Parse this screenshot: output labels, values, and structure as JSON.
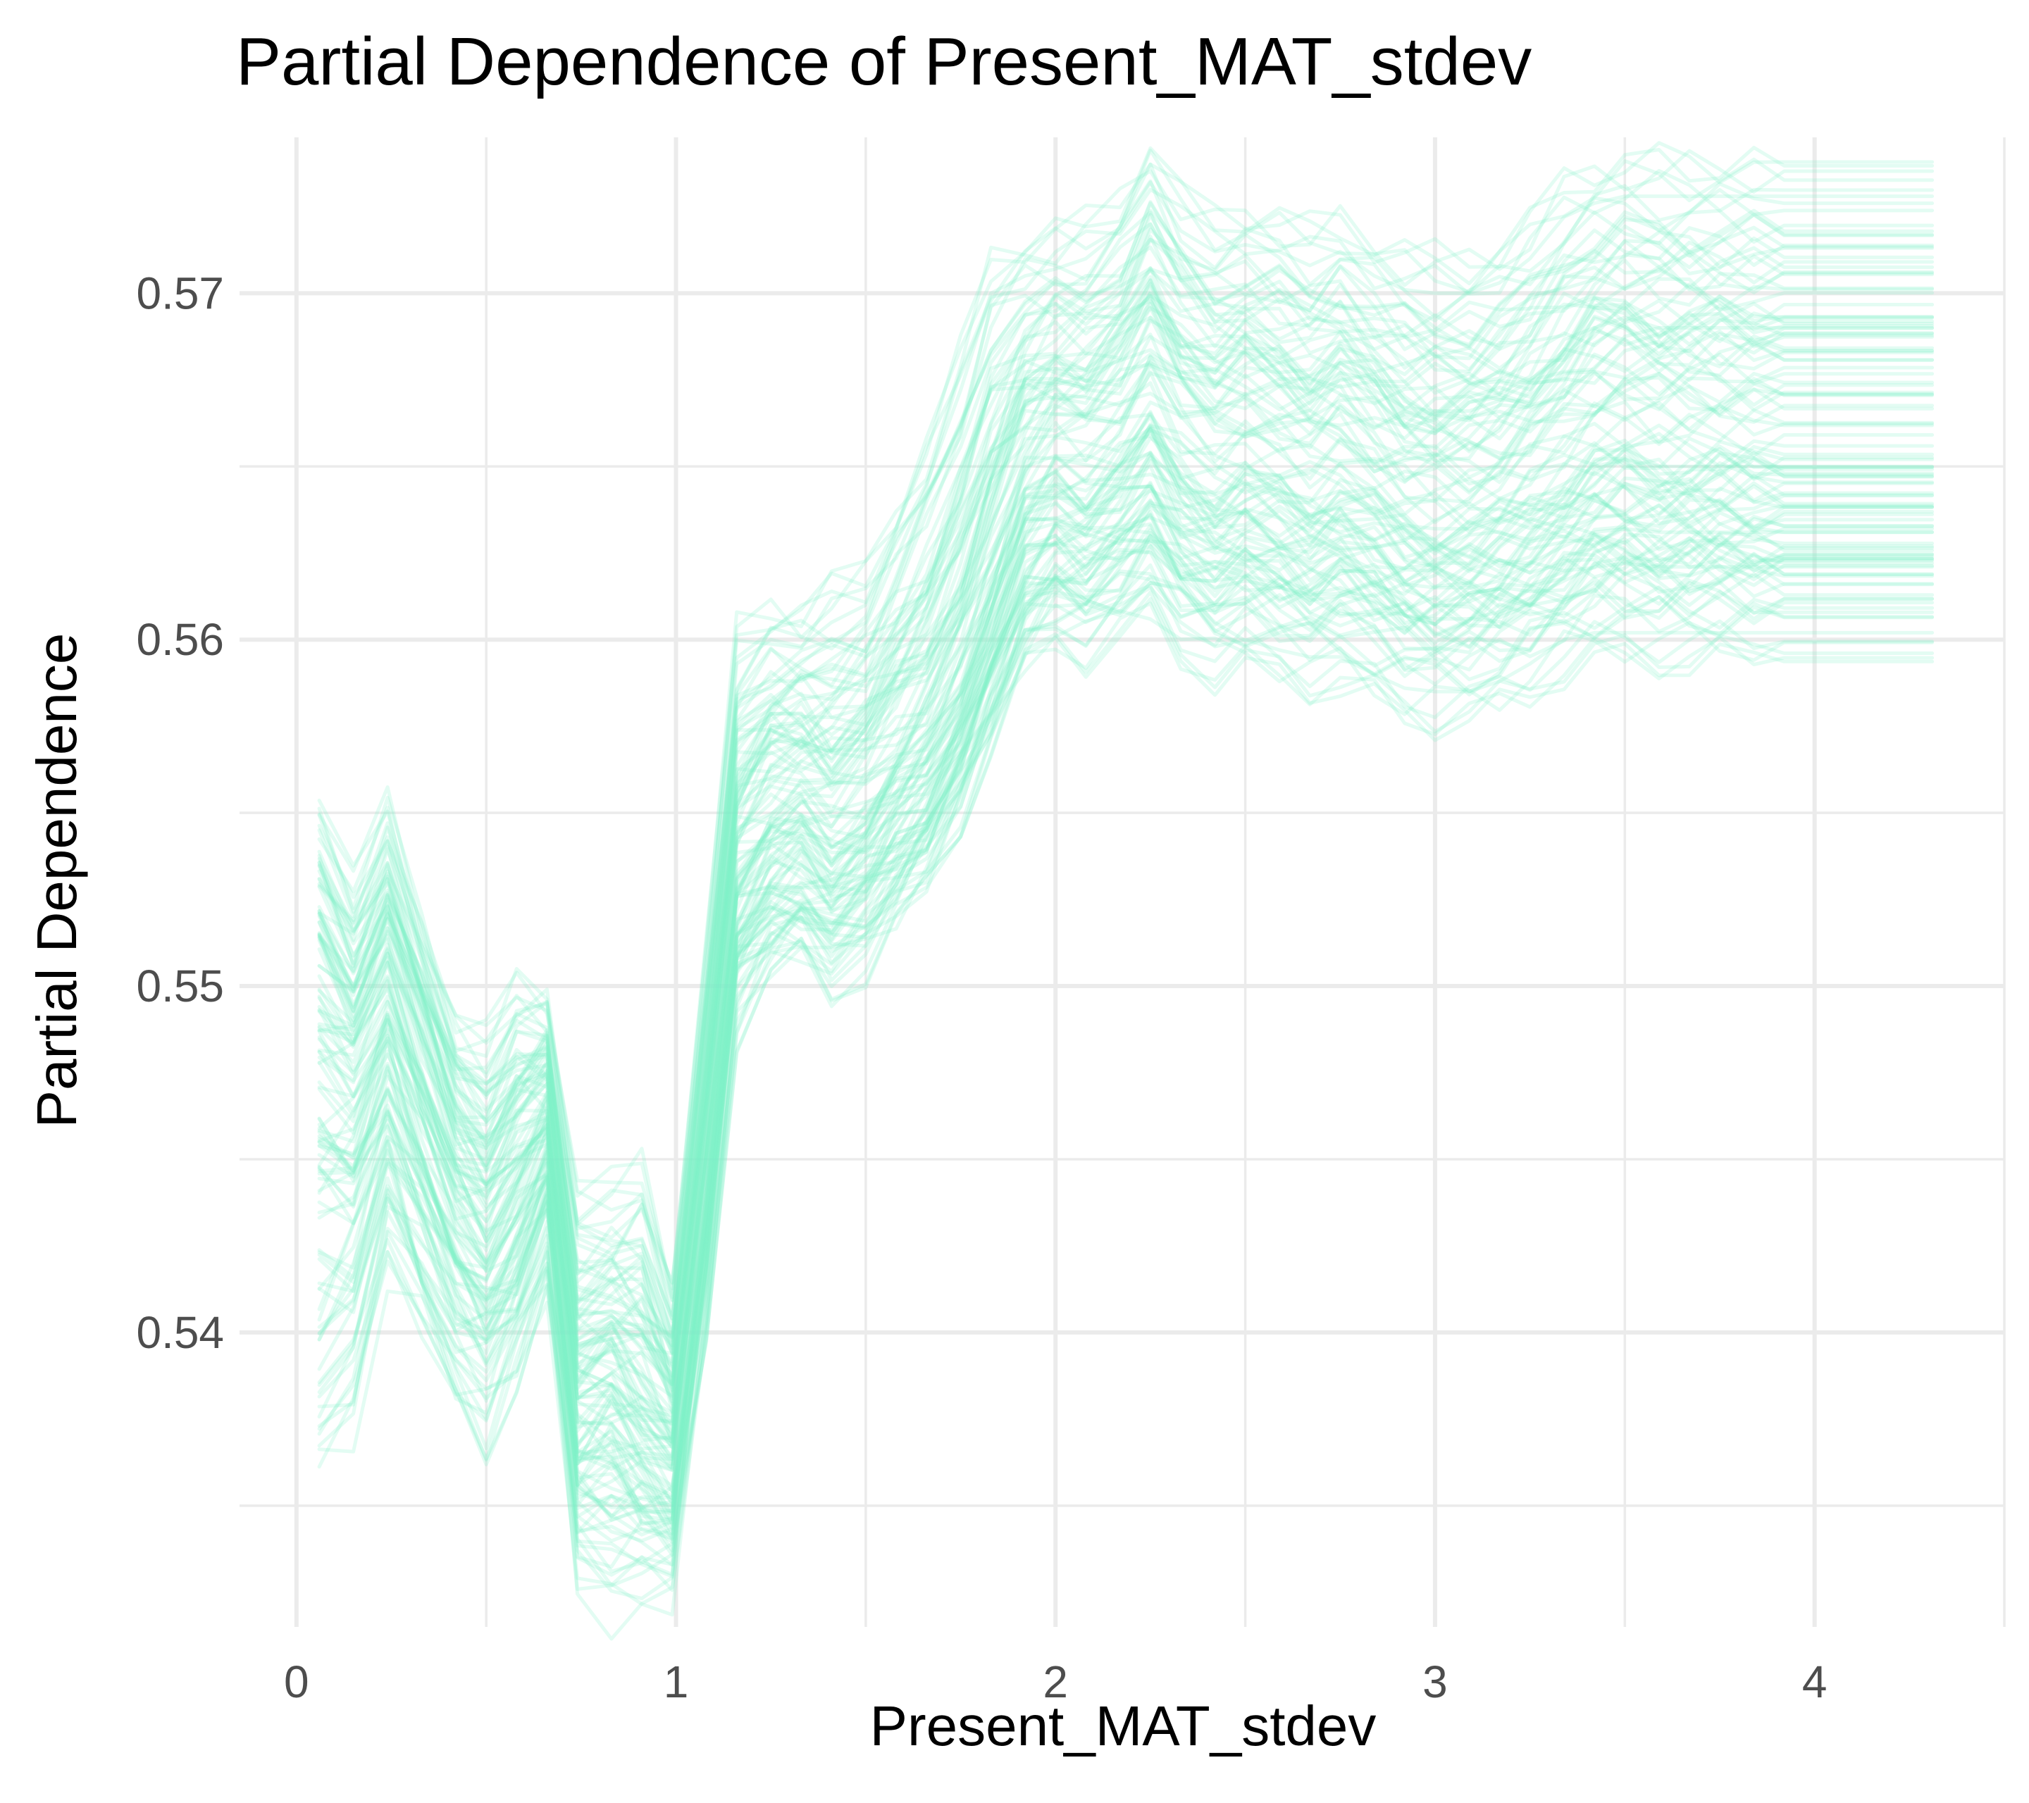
{
  "chart_data": {
    "type": "line",
    "title": "Partial Dependence of Present_MAT_stdev",
    "xlabel": "Present_MAT_stdev",
    "ylabel": "Partial Dependence",
    "xlim": [
      -0.15,
      4.5
    ],
    "ylim": [
      0.5315,
      0.5745
    ],
    "x_ticks": [
      0,
      1,
      2,
      3,
      4
    ],
    "x_tick_labels": [
      "0",
      "1",
      "2",
      "3",
      "4"
    ],
    "y_ticks": [
      0.54,
      0.55,
      0.56,
      0.57
    ],
    "y_tick_labels": [
      "0.54",
      "0.55",
      "0.56",
      "0.57"
    ],
    "grid": true,
    "legend": "none",
    "line_color": "#7FF0C8",
    "line_opacity": 0.22,
    "n_lines": 120,
    "x": [
      0.06,
      0.15,
      0.24,
      0.33,
      0.42,
      0.5,
      0.58,
      0.66,
      0.74,
      0.83,
      0.91,
      0.99,
      1.08,
      1.16,
      1.25,
      1.33,
      1.41,
      1.5,
      1.58,
      1.66,
      1.75,
      1.83,
      1.92,
      2.0,
      2.08,
      2.17,
      2.25,
      2.33,
      2.42,
      2.5,
      2.59,
      2.67,
      2.75,
      2.84,
      2.92,
      3.0,
      3.09,
      3.17,
      3.25,
      3.34,
      3.42,
      3.5,
      3.59,
      3.67,
      3.75,
      3.84,
      3.92,
      4.0,
      4.09,
      4.17,
      4.25,
      4.31
    ],
    "series": [
      {
        "values": [
          0.5488,
          0.5478,
          0.5497,
          0.547,
          0.5445,
          0.5432,
          0.5448,
          0.5462,
          0.5381,
          0.5388,
          0.5372,
          0.5362,
          0.545,
          0.5532,
          0.5542,
          0.5545,
          0.554,
          0.5547,
          0.5556,
          0.5565,
          0.5585,
          0.5608,
          0.5636,
          0.5645,
          0.5643,
          0.565,
          0.566,
          0.5648,
          0.5642,
          0.5645,
          0.5643,
          0.564,
          0.5643,
          0.5638,
          0.5633,
          0.5632,
          0.5632,
          0.5635,
          0.564,
          0.5645,
          0.565,
          0.5652,
          0.565,
          0.565,
          0.565,
          0.565,
          0.565,
          0.565,
          0.565,
          0.565,
          0.565,
          0.565
        ]
      },
      {
        "values": [
          0.5515,
          0.55,
          0.5525,
          0.5495,
          0.5465,
          0.5455,
          0.5468,
          0.5475,
          0.5398,
          0.5405,
          0.5395,
          0.5385,
          0.5475,
          0.5555,
          0.557,
          0.5575,
          0.5568,
          0.5575,
          0.5585,
          0.5595,
          0.5615,
          0.564,
          0.567,
          0.568,
          0.5678,
          0.5685,
          0.57,
          0.5688,
          0.568,
          0.5683,
          0.568,
          0.5676,
          0.568,
          0.5672,
          0.5667,
          0.5666,
          0.5666,
          0.5669,
          0.5675,
          0.5682,
          0.569,
          0.5693,
          0.569,
          0.569,
          0.569,
          0.569,
          0.569,
          0.569,
          0.569,
          0.569,
          0.569,
          0.569
        ]
      },
      {
        "values": [
          0.5455,
          0.5448,
          0.547,
          0.5442,
          0.542,
          0.541,
          0.5422,
          0.5445,
          0.5362,
          0.5372,
          0.5355,
          0.5348,
          0.543,
          0.5515,
          0.552,
          0.5522,
          0.5518,
          0.5525,
          0.5535,
          0.5545,
          0.5565,
          0.5585,
          0.561,
          0.5618,
          0.5617,
          0.5622,
          0.563,
          0.562,
          0.5615,
          0.5617,
          0.5615,
          0.5613,
          0.5615,
          0.5611,
          0.5607,
          0.5606,
          0.5606,
          0.5608,
          0.5612,
          0.5617,
          0.5621,
          0.5622,
          0.5621,
          0.5621,
          0.5621,
          0.5621,
          0.5621,
          0.5621,
          0.5621,
          0.5621,
          0.5621,
          0.5621
        ]
      },
      {
        "values": [
          0.5373,
          0.538,
          0.543,
          0.542,
          0.54,
          0.5398,
          0.5405,
          0.5432,
          0.5335,
          0.533,
          0.5335,
          0.5333,
          0.542,
          0.5505,
          0.5525,
          0.553,
          0.5523,
          0.5532,
          0.554,
          0.555,
          0.557,
          0.5593,
          0.562,
          0.5628,
          0.5626,
          0.5632,
          0.564,
          0.563,
          0.5625,
          0.5627,
          0.5625,
          0.5622,
          0.5625,
          0.562,
          0.5616,
          0.5615,
          0.5615,
          0.5617,
          0.5622,
          0.5627,
          0.5631,
          0.5632,
          0.5631,
          0.5631,
          0.5631,
          0.5631,
          0.5631,
          0.5631,
          0.5631,
          0.5631,
          0.5631,
          0.5631
        ]
      },
      {
        "values": [
          0.5545,
          0.552,
          0.5543,
          0.551,
          0.548,
          0.5475,
          0.5492,
          0.5488,
          0.543,
          0.5432,
          0.544,
          0.5405,
          0.55,
          0.5593,
          0.56,
          0.5598,
          0.5605,
          0.561,
          0.5628,
          0.5645,
          0.5672,
          0.57,
          0.5705,
          0.5707,
          0.571,
          0.5718,
          0.5732,
          0.5718,
          0.5712,
          0.5714,
          0.5712,
          0.5708,
          0.5712,
          0.5705,
          0.5701,
          0.57,
          0.57,
          0.5703,
          0.571,
          0.5722,
          0.5726,
          0.5728,
          0.5728,
          0.5728,
          0.5728,
          0.5728,
          0.5728,
          0.5728,
          0.5728,
          0.5728,
          0.5728,
          0.5728
        ]
      },
      {
        "values": [
          0.5398,
          0.542,
          0.545,
          0.5415,
          0.539,
          0.5375,
          0.54,
          0.542,
          0.536,
          0.5355,
          0.5352,
          0.535,
          0.541,
          0.55,
          0.5515,
          0.552,
          0.551,
          0.5515,
          0.5528,
          0.554,
          0.556,
          0.558,
          0.56,
          0.561,
          0.5605,
          0.561,
          0.5615,
          0.5605,
          0.5598,
          0.56,
          0.5597,
          0.5595,
          0.5595,
          0.559,
          0.5586,
          0.5585,
          0.5585,
          0.5588,
          0.5593,
          0.56,
          0.5602,
          0.5602,
          0.5602,
          0.5602,
          0.5602,
          0.5602,
          0.5602,
          0.5602,
          0.5602,
          0.5602,
          0.5602,
          0.5602
        ]
      }
    ]
  }
}
